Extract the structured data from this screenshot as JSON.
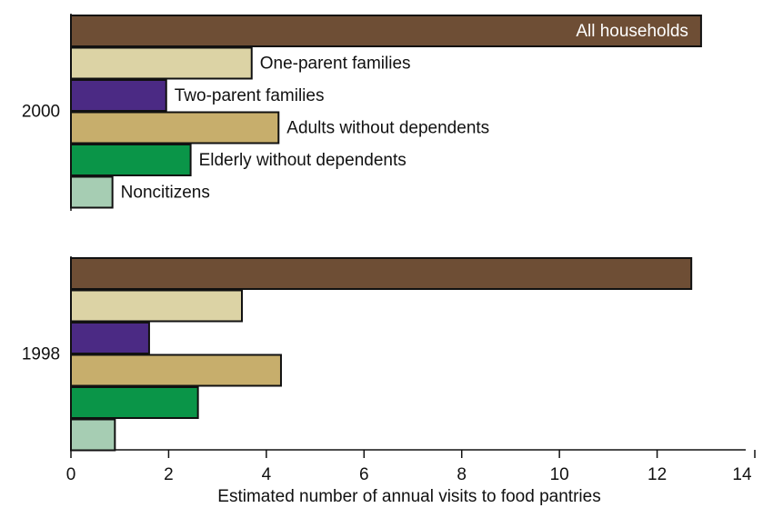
{
  "chart_data": {
    "type": "bar",
    "orientation": "horizontal",
    "categories": [
      "2000",
      "1998"
    ],
    "series": [
      {
        "name": "All households",
        "color": "#6e4e35",
        "values": [
          12.9,
          12.7
        ]
      },
      {
        "name": "One-parent families",
        "color": "#dcd3a5",
        "values": [
          3.7,
          3.5
        ]
      },
      {
        "name": "Two-parent families",
        "color": "#4b2a84",
        "values": [
          1.95,
          1.6
        ]
      },
      {
        "name": "Adults without dependents",
        "color": "#c7ae6c",
        "values": [
          4.25,
          4.3
        ]
      },
      {
        "name": "Elderly without dependents",
        "color": "#0a9548",
        "values": [
          2.45,
          2.6
        ]
      },
      {
        "name": "Noncitizens",
        "color": "#a6cdb3",
        "values": [
          0.85,
          0.9
        ]
      }
    ],
    "xlim": [
      0,
      14
    ],
    "xticks": [
      0,
      2,
      4,
      6,
      8,
      10,
      12,
      14
    ],
    "xlabel": "Estimated number of annual visits to food pantries"
  }
}
